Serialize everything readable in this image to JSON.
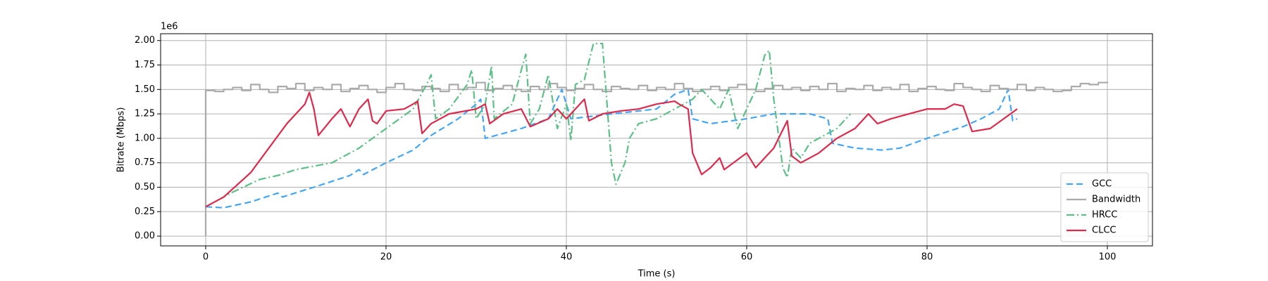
{
  "chart_data": {
    "type": "line",
    "xlabel": "Time (s)",
    "ylabel": "Bitrate (Mbps)",
    "y_offset_label": "1e6",
    "xlim": [
      -5,
      105
    ],
    "ylim": [
      -0.1,
      2.07
    ],
    "xticks": [
      0,
      20,
      40,
      60,
      80,
      100
    ],
    "yticks": [
      {
        "value": 0,
        "label": "0.00"
      },
      {
        "value": 0.25,
        "label": "0.25"
      },
      {
        "value": 0.5,
        "label": "0.50"
      },
      {
        "value": 0.75,
        "label": "0.75"
      },
      {
        "value": 1,
        "label": "1.00"
      },
      {
        "value": 1.25,
        "label": "1.25"
      },
      {
        "value": 1.5,
        "label": "1.50"
      },
      {
        "value": 1.75,
        "label": "1.75"
      },
      {
        "value": 2,
        "label": "2.00"
      }
    ],
    "grid": true,
    "legend_loc": "lower right",
    "series": [
      {
        "name": "GCC",
        "color": "#42a5f5",
        "linestyle": "dashed",
        "x": [
          0,
          2,
          5,
          8,
          8.5,
          12,
          16,
          17,
          17.5,
          20,
          23,
          25,
          28,
          30,
          30.5,
          31,
          35,
          38,
          39.5,
          40.5,
          45,
          50,
          52,
          53.5,
          54,
          56,
          60,
          63,
          67,
          69,
          69.5,
          72,
          75,
          77,
          80,
          84,
          86,
          88,
          89,
          89.5,
          90
        ],
        "values": [
          0.3,
          0.29,
          0.35,
          0.44,
          0.4,
          0.5,
          0.62,
          0.68,
          0.63,
          0.75,
          0.88,
          1.03,
          1.2,
          1.35,
          1.4,
          1.0,
          1.1,
          1.2,
          1.5,
          1.2,
          1.25,
          1.3,
          1.45,
          1.5,
          1.2,
          1.15,
          1.2,
          1.25,
          1.25,
          1.2,
          0.95,
          0.9,
          0.88,
          0.9,
          1.0,
          1.12,
          1.2,
          1.3,
          1.5,
          1.18,
          1.2
        ]
      },
      {
        "name": "Bandwidth",
        "color": "#aaaaaa",
        "linestyle": "solid",
        "drawstyle": "steps-post",
        "x": [
          0,
          0,
          1,
          2,
          3,
          4,
          5,
          6,
          7,
          8,
          9,
          10,
          11,
          12,
          13,
          14,
          15,
          16,
          17,
          18,
          19,
          20,
          21,
          22,
          23,
          24,
          25,
          26,
          27,
          28,
          29,
          30,
          31,
          32,
          33,
          34,
          35,
          36,
          37,
          38,
          39,
          40,
          41,
          42,
          43,
          44,
          45,
          46,
          47,
          48,
          49,
          50,
          51,
          52,
          53,
          54,
          55,
          56,
          57,
          58,
          59,
          60,
          61,
          62,
          63,
          64,
          65,
          66,
          67,
          68,
          69,
          70,
          71,
          72,
          73,
          74,
          75,
          76,
          77,
          78,
          79,
          80,
          81,
          82,
          83,
          84,
          85,
          86,
          87,
          88,
          89,
          90,
          91,
          92,
          93,
          94,
          95,
          96,
          97,
          98,
          99,
          100
        ],
        "values": [
          0,
          1.49,
          1.48,
          1.5,
          1.52,
          1.49,
          1.55,
          1.5,
          1.47,
          1.53,
          1.51,
          1.56,
          1.49,
          1.52,
          1.5,
          1.55,
          1.48,
          1.51,
          1.54,
          1.5,
          1.47,
          1.52,
          1.56,
          1.5,
          1.49,
          1.53,
          1.51,
          1.48,
          1.55,
          1.5,
          1.52,
          1.57,
          1.49,
          1.51,
          1.54,
          1.5,
          1.48,
          1.53,
          1.5,
          1.56,
          1.52,
          1.49,
          1.51,
          1.55,
          1.5,
          1.48,
          1.53,
          1.51,
          1.5,
          1.54,
          1.49,
          1.52,
          1.5,
          1.56,
          1.51,
          1.48,
          1.5,
          1.53,
          1.49,
          1.52,
          1.55,
          1.5,
          1.48,
          1.51,
          1.54,
          1.5,
          1.52,
          1.49,
          1.53,
          1.5,
          1.56,
          1.48,
          1.51,
          1.5,
          1.54,
          1.49,
          1.52,
          1.5,
          1.55,
          1.48,
          1.51,
          1.53,
          1.5,
          1.49,
          1.56,
          1.52,
          1.5,
          1.48,
          1.54,
          1.51,
          1.5,
          1.55,
          1.49,
          1.52,
          1.5,
          1.48,
          1.49,
          1.53,
          1.56,
          1.55,
          1.57,
          1.58
        ]
      },
      {
        "name": "HRCC",
        "color": "#5bbf86",
        "linestyle": "dashdot",
        "x": [
          0,
          3,
          6,
          8,
          10,
          14,
          17,
          20,
          23,
          24.5,
          25,
          25.5,
          27,
          29,
          29.5,
          30,
          31,
          31.7,
          32,
          34,
          35,
          35.5,
          36,
          37,
          38,
          39,
          40,
          40.5,
          41,
          42,
          43,
          44,
          45,
          45.5,
          46.5,
          47,
          48,
          50,
          52,
          54,
          55,
          57,
          58,
          59,
          61,
          62,
          62.5,
          63,
          64,
          64.5,
          65,
          66,
          67,
          68,
          69,
          70,
          71.5
        ],
        "values": [
          0.3,
          0.45,
          0.58,
          0.62,
          0.68,
          0.75,
          0.9,
          1.1,
          1.3,
          1.55,
          1.65,
          1.2,
          1.3,
          1.55,
          1.7,
          1.2,
          1.35,
          1.74,
          1.2,
          1.35,
          1.7,
          1.86,
          1.15,
          1.3,
          1.65,
          1.1,
          1.35,
          0.98,
          1.55,
          1.6,
          1.97,
          1.97,
          0.75,
          0.53,
          0.75,
          1.0,
          1.15,
          1.2,
          1.3,
          1.4,
          1.5,
          1.3,
          1.5,
          1.1,
          1.5,
          1.85,
          1.9,
          1.4,
          0.7,
          0.6,
          0.9,
          0.8,
          0.95,
          1.0,
          1.05,
          1.1,
          1.25
        ]
      },
      {
        "name": "CLCC",
        "color": "#dc2a4c",
        "linestyle": "solid",
        "x": [
          0,
          2,
          5,
          7,
          9,
          11,
          11.5,
          12,
          12.5,
          14,
          15,
          16,
          17,
          18,
          18.5,
          19,
          20,
          22,
          23,
          23.5,
          24,
          25,
          27,
          30,
          31,
          31.5,
          33,
          35,
          36,
          38,
          39,
          40,
          41,
          42,
          42.5,
          44,
          46,
          48,
          50,
          52,
          52.5,
          53.5,
          54,
          55,
          56,
          57,
          57.5,
          60,
          61,
          63,
          64.5,
          65,
          66,
          68,
          70,
          72,
          73.5,
          74.5,
          76,
          78,
          80,
          82,
          83,
          84,
          84.5,
          85,
          87,
          90
        ],
        "values": [
          0.3,
          0.4,
          0.65,
          0.9,
          1.15,
          1.35,
          1.47,
          1.3,
          1.03,
          1.2,
          1.3,
          1.12,
          1.3,
          1.4,
          1.18,
          1.15,
          1.28,
          1.3,
          1.35,
          1.38,
          1.05,
          1.15,
          1.25,
          1.3,
          1.35,
          1.15,
          1.25,
          1.3,
          1.12,
          1.2,
          1.3,
          1.2,
          1.3,
          1.4,
          1.18,
          1.25,
          1.28,
          1.3,
          1.35,
          1.38,
          1.35,
          1.3,
          0.85,
          0.63,
          0.7,
          0.8,
          0.68,
          0.85,
          0.7,
          0.9,
          1.18,
          0.82,
          0.75,
          0.85,
          1.0,
          1.1,
          1.25,
          1.15,
          1.2,
          1.25,
          1.3,
          1.3,
          1.35,
          1.33,
          1.2,
          1.07,
          1.1,
          1.3
        ]
      }
    ]
  }
}
